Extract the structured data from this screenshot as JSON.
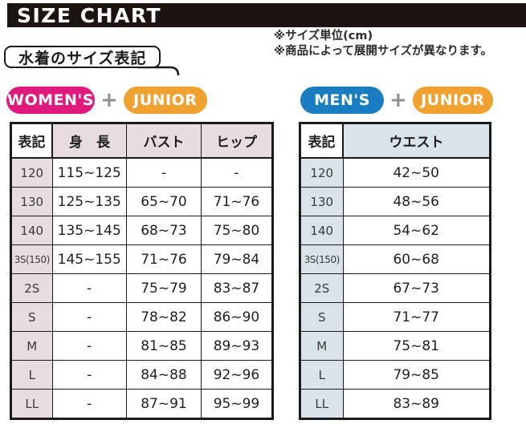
{
  "title": "SIZE CHART",
  "notes": {
    "unit": "※サイズ単位(cm)",
    "availability": "※商品によって展開サイズが異なります。"
  },
  "section_label": "水着のサイズ表記",
  "badge_groups": {
    "women": {
      "primary": "WOMEN'S",
      "plus": "+",
      "secondary": "JUNIOR"
    },
    "men": {
      "primary": "MEN'S",
      "plus": "+",
      "secondary": "JUNIOR"
    }
  },
  "colors": {
    "title-bar-bg": "#1b1410",
    "womens-pink": "#e0197d",
    "mens-blue": "#1a7dc1",
    "junior-orange": "#f0a231",
    "plus-gray": "#8f8f8f",
    "women-header-bg": "#e7dce1",
    "men-header-bg": "#d9e3e9"
  },
  "women_table": {
    "headers": [
      "表記",
      "身　長",
      "バスト",
      "ヒップ"
    ],
    "rows": [
      [
        "120",
        "115~125",
        "-",
        "-"
      ],
      [
        "130",
        "125~135",
        "65~70",
        "71~76"
      ],
      [
        "140",
        "135~145",
        "68~73",
        "75~80"
      ],
      [
        "3S(150)",
        "145~155",
        "71~76",
        "79~84"
      ],
      [
        "2S",
        "-",
        "75~79",
        "83~87"
      ],
      [
        "S",
        "-",
        "78~82",
        "86~90"
      ],
      [
        "M",
        "-",
        "81~85",
        "89~93"
      ],
      [
        "L",
        "-",
        "84~88",
        "92~96"
      ],
      [
        "LL",
        "-",
        "87~91",
        "95~99"
      ]
    ]
  },
  "men_table": {
    "headers": [
      "表記",
      "ウエスト"
    ],
    "rows": [
      [
        "120",
        "42~50"
      ],
      [
        "130",
        "48~56"
      ],
      [
        "140",
        "54~62"
      ],
      [
        "3S(150)",
        "60~68"
      ],
      [
        "2S",
        "67~73"
      ],
      [
        "S",
        "71~77"
      ],
      [
        "M",
        "75~81"
      ],
      [
        "L",
        "79~85"
      ],
      [
        "LL",
        "83~89"
      ]
    ]
  }
}
